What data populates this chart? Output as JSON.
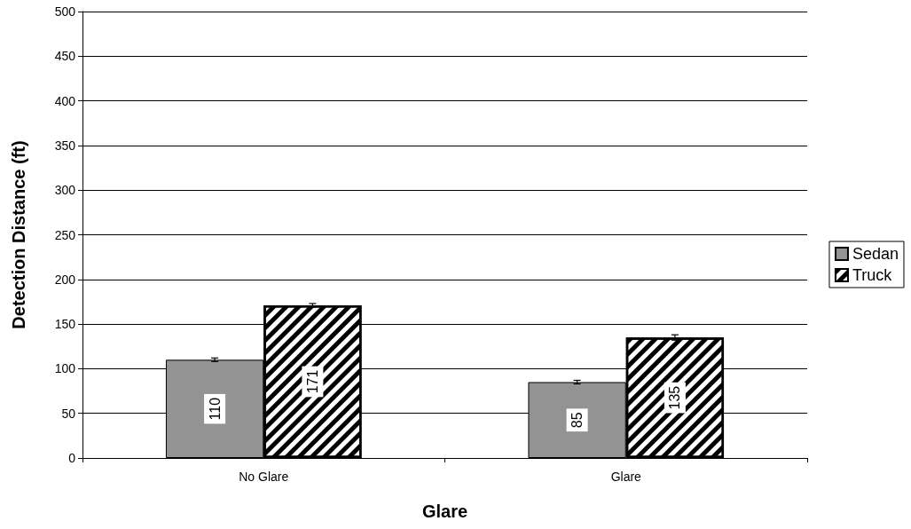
{
  "chart_data": {
    "type": "bar",
    "xlabel": "Glare",
    "ylabel": "Detection Distance (ft)",
    "categories": [
      "No Glare",
      "Glare"
    ],
    "series": [
      {
        "name": "Sedan",
        "color": "#939393",
        "values": [
          110,
          85
        ],
        "errors": [
          2,
          2
        ]
      },
      {
        "name": "Truck",
        "color": "#ffffff",
        "values": [
          171,
          135
        ],
        "errors": [
          2,
          3
        ]
      }
    ],
    "ylim": [
      0,
      500
    ],
    "yticks": [
      0,
      50,
      100,
      150,
      200,
      250,
      300,
      350,
      400,
      450,
      500
    ],
    "grid": "y",
    "legend": "right",
    "data_labels": true
  }
}
